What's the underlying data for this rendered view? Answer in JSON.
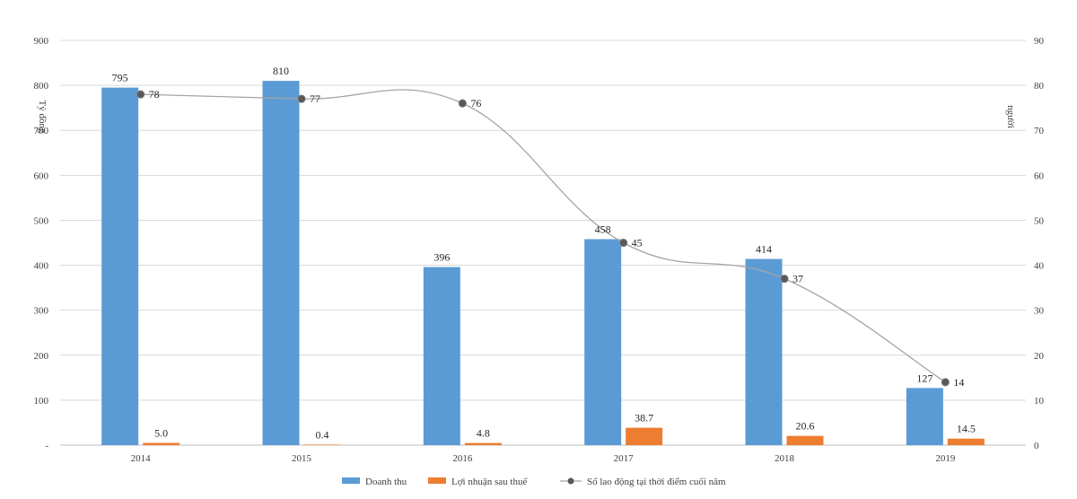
{
  "chart_data": {
    "type": "bar",
    "categories": [
      "2014",
      "2015",
      "2016",
      "2017",
      "2018",
      "2019"
    ],
    "series": [
      {
        "name": "Doanh thu",
        "kind": "bar",
        "axis": "left",
        "color": "#5B9BD5",
        "values": [
          795,
          810,
          396,
          458,
          414,
          127
        ],
        "labels": [
          "795",
          "810",
          "396",
          "458",
          "414",
          "127"
        ]
      },
      {
        "name": "Lợi nhuận sau thuế",
        "kind": "bar",
        "axis": "left",
        "color": "#ED7D31",
        "values": [
          5.0,
          0.4,
          4.8,
          38.7,
          20.6,
          14.5
        ],
        "labels": [
          "5.0",
          "0.4",
          "4.8",
          "38.7",
          "20.6",
          "14.5"
        ]
      },
      {
        "name": "Số lao động tại thời điểm cuối năm",
        "kind": "line",
        "axis": "right",
        "color": "#A5A5A5",
        "marker_color": "#595959",
        "values": [
          78,
          77,
          76,
          45,
          37,
          14
        ],
        "labels": [
          "78",
          "77",
          "76",
          "45",
          "37",
          "14"
        ]
      }
    ],
    "left_axis": {
      "label": "Tỷ đồng",
      "ylim": [
        0,
        900
      ],
      "ticks": [
        "-",
        "100",
        "200",
        "300",
        "400",
        "500",
        "600",
        "700",
        "800",
        "900"
      ]
    },
    "right_axis": {
      "label": "người",
      "ylim": [
        0,
        90
      ],
      "ticks": [
        "0",
        "10",
        "20",
        "30",
        "40",
        "50",
        "60",
        "70",
        "80",
        "90"
      ]
    },
    "grid": true,
    "legend_position": "bottom-center",
    "gridline_color": "#D9D9D9"
  }
}
